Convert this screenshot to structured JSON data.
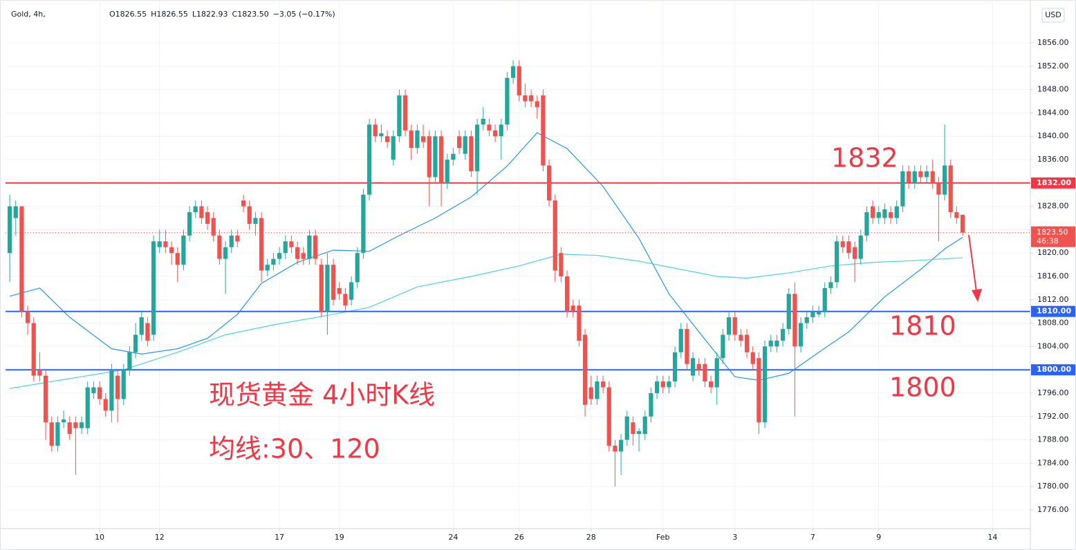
{
  "chart_data": {
    "type": "candlestick",
    "header": {
      "symbol": "Gold, 4h,",
      "ohlc": [
        "O1826.55",
        "H1826.55",
        "L1822.93",
        "C1823.50",
        "−3.05 (−0.17%)"
      ]
    },
    "currency": "USD",
    "colors": {
      "up": "#26a69a",
      "down": "#ef5350"
    },
    "xlim": [
      -0.7,
      170.3
    ],
    "xticks": [
      {
        "value": 15,
        "label": "10"
      },
      {
        "value": 25,
        "label": "12"
      },
      {
        "value": 45,
        "label": "17"
      },
      {
        "value": 55,
        "label": "19"
      },
      {
        "value": 74,
        "label": "24"
      },
      {
        "value": 85,
        "label": "26"
      },
      {
        "value": 97,
        "label": "28"
      },
      {
        "value": 109,
        "label": "Feb"
      },
      {
        "value": 121,
        "label": "3"
      },
      {
        "value": 134,
        "label": "7"
      },
      {
        "value": 145,
        "label": "9"
      },
      {
        "value": 164,
        "label": "14"
      }
    ],
    "ylim": [
      1772.92,
      1863.34
    ],
    "yticks": [
      {
        "value": 1776,
        "label": "1776.00"
      },
      {
        "value": 1780,
        "label": "1780.00"
      },
      {
        "value": 1784,
        "label": "1784.00"
      },
      {
        "value": 1788,
        "label": "1788.00"
      },
      {
        "value": 1792,
        "label": "1792.00"
      },
      {
        "value": 1796,
        "label": "1796.00"
      },
      {
        "value": 1800,
        "label": "1800.00"
      },
      {
        "value": 1804,
        "label": "1804.00"
      },
      {
        "value": 1808,
        "label": "1808.00"
      },
      {
        "value": 1812,
        "label": "1812.00"
      },
      {
        "value": 1816,
        "label": "1816.00"
      },
      {
        "value": 1820,
        "label": "1820.00"
      },
      {
        "value": 1824,
        "label": "1824.00"
      },
      {
        "value": 1828,
        "label": "1828.00"
      },
      {
        "value": 1832,
        "label": "1832.00"
      },
      {
        "value": 1836,
        "label": "1836.00"
      },
      {
        "value": 1840,
        "label": "1840.00"
      },
      {
        "value": 1844,
        "label": "1844.00"
      },
      {
        "value": 1848,
        "label": "1848.00"
      },
      {
        "value": 1852,
        "label": "1852.00"
      },
      {
        "value": 1856,
        "label": "1856.00"
      }
    ],
    "grid": true,
    "candles": [
      [
        1820,
        1830,
        1815,
        1828
      ],
      [
        1826,
        1829,
        1823,
        1828
      ],
      [
        1828,
        1828,
        1809,
        1810
      ],
      [
        1810,
        1811,
        1806,
        1808
      ],
      [
        1808,
        1809,
        1798,
        1799
      ],
      [
        1800,
        1803,
        1798,
        1799
      ],
      [
        1799,
        1800,
        1788,
        1791
      ],
      [
        1791,
        1792,
        1786,
        1787
      ],
      [
        1787,
        1792,
        1786,
        1791
      ],
      [
        1791,
        1793,
        1790,
        1791.5
      ],
      [
        1791,
        1792,
        1788,
        1789
      ],
      [
        1791,
        1792,
        1782,
        1790
      ],
      [
        1790,
        1792,
        1789,
        1791
      ],
      [
        1790,
        1798,
        1789,
        1797
      ],
      [
        1796,
        1798,
        1795,
        1797
      ],
      [
        1797,
        1798,
        1794,
        1795
      ],
      [
        1795,
        1796,
        1792,
        1793
      ],
      [
        1793,
        1801,
        1791,
        1800
      ],
      [
        1799,
        1800,
        1791,
        1795
      ],
      [
        1795,
        1801,
        1794,
        1800
      ],
      [
        1800,
        1804,
        1799,
        1803
      ],
      [
        1803,
        1808,
        1802,
        1806
      ],
      [
        1806,
        1810,
        1805,
        1809
      ],
      [
        1808,
        1809,
        1804,
        1805
      ],
      [
        1806,
        1823,
        1805,
        1822
      ],
      [
        1821,
        1824,
        1820,
        1822
      ],
      [
        1822,
        1824,
        1820,
        1821
      ],
      [
        1821,
        1822,
        1818,
        1820
      ],
      [
        1820,
        1821,
        1815,
        1818
      ],
      [
        1818,
        1824,
        1817,
        1823
      ],
      [
        1823,
        1828,
        1822,
        1827
      ],
      [
        1827,
        1829,
        1826,
        1828
      ],
      [
        1828,
        1829,
        1825,
        1826
      ],
      [
        1827,
        1828,
        1824,
        1825
      ],
      [
        1826,
        1827,
        1822,
        1823
      ],
      [
        1823,
        1824,
        1818,
        1819
      ],
      [
        1819,
        1822,
        1813,
        1821
      ],
      [
        1821,
        1824,
        1820,
        1823
      ],
      [
        1823,
        1824,
        1821,
        1822
      ],
      [
        1829,
        1830,
        1827,
        1828
      ],
      [
        1828,
        1829,
        1824,
        1825
      ],
      [
        1825,
        1827,
        1823,
        1826
      ],
      [
        1826,
        1827,
        1815,
        1817
      ],
      [
        1817,
        1819,
        1816,
        1818
      ],
      [
        1818,
        1820,
        1817,
        1819
      ],
      [
        1819,
        1821,
        1818,
        1820
      ],
      [
        1820,
        1823,
        1819,
        1822
      ],
      [
        1822,
        1823,
        1820,
        1821
      ],
      [
        1821,
        1822,
        1818,
        1819
      ],
      [
        1820,
        1821,
        1818,
        1819
      ],
      [
        1819,
        1824,
        1818,
        1823
      ],
      [
        1823,
        1824,
        1818,
        1819
      ],
      [
        1818,
        1819,
        1809,
        1810
      ],
      [
        1810,
        1820,
        1806,
        1818
      ],
      [
        1818,
        1819,
        1811,
        1812
      ],
      [
        1814,
        1815,
        1812,
        1813
      ],
      [
        1813,
        1814,
        1810,
        1811
      ],
      [
        1812,
        1816,
        1811,
        1815
      ],
      [
        1815,
        1821,
        1814,
        1820
      ],
      [
        1820,
        1831,
        1819,
        1830
      ],
      [
        1830,
        1843,
        1829,
        1842
      ],
      [
        1842,
        1843,
        1839,
        1840
      ],
      [
        1840,
        1842,
        1839,
        1840.5
      ],
      [
        1840,
        1841,
        1838,
        1839
      ],
      [
        1836,
        1841,
        1835,
        1840
      ],
      [
        1840,
        1848,
        1839,
        1847
      ],
      [
        1847,
        1848,
        1840,
        1841
      ],
      [
        1841,
        1842,
        1836,
        1838
      ],
      [
        1838,
        1842,
        1837,
        1841
      ],
      [
        1840,
        1842,
        1838,
        1839
      ],
      [
        1840,
        1841,
        1828,
        1833
      ],
      [
        1833,
        1841,
        1832,
        1840
      ],
      [
        1840,
        1841,
        1828,
        1832
      ],
      [
        1832,
        1837,
        1831,
        1836
      ],
      [
        1836,
        1838,
        1835,
        1837
      ],
      [
        1840,
        1841,
        1837,
        1838
      ],
      [
        1837,
        1841,
        1836,
        1840
      ],
      [
        1840,
        1841,
        1833,
        1834
      ],
      [
        1834,
        1843,
        1830,
        1842
      ],
      [
        1842,
        1845,
        1841,
        1843
      ],
      [
        1842,
        1843,
        1840,
        1841
      ],
      [
        1841,
        1842,
        1839,
        1840
      ],
      [
        1840,
        1843,
        1836,
        1842
      ],
      [
        1842,
        1851,
        1841,
        1850
      ],
      [
        1850,
        1853,
        1849,
        1852
      ],
      [
        1852,
        1853,
        1846,
        1847
      ],
      [
        1847,
        1849,
        1845,
        1846
      ],
      [
        1847,
        1848,
        1845,
        1846
      ],
      [
        1846,
        1847,
        1843,
        1845
      ],
      [
        1847,
        1848,
        1834,
        1835
      ],
      [
        1835,
        1836,
        1828,
        1829
      ],
      [
        1829,
        1830,
        1815,
        1817
      ],
      [
        1820,
        1821,
        1815,
        1816
      ],
      [
        1816,
        1817,
        1809,
        1810
      ],
      [
        1811,
        1812,
        1809,
        1810
      ],
      [
        1811,
        1812,
        1804,
        1805
      ],
      [
        1806,
        1807,
        1792,
        1794
      ],
      [
        1797,
        1799,
        1794,
        1795
      ],
      [
        1795,
        1799,
        1794,
        1798
      ],
      [
        1798,
        1799,
        1796,
        1797
      ],
      [
        1797,
        1798,
        1786,
        1787
      ],
      [
        1787,
        1788,
        1780,
        1786
      ],
      [
        1786,
        1789,
        1782,
        1788
      ],
      [
        1788,
        1793,
        1787,
        1792
      ],
      [
        1791,
        1792,
        1787,
        1789
      ],
      [
        1789,
        1790,
        1786,
        1789.5
      ],
      [
        1789,
        1793,
        1788,
        1792
      ],
      [
        1792,
        1797,
        1791,
        1796
      ],
      [
        1796,
        1799,
        1795,
        1798
      ],
      [
        1798,
        1799,
        1796,
        1797
      ],
      [
        1797,
        1799,
        1796,
        1798
      ],
      [
        1798,
        1804,
        1797,
        1803
      ],
      [
        1803,
        1808,
        1802,
        1807
      ],
      [
        1807,
        1808,
        1800,
        1801
      ],
      [
        1799,
        1803,
        1798,
        1802
      ],
      [
        1801,
        1802,
        1799,
        1800
      ],
      [
        1801,
        1802,
        1797,
        1798
      ],
      [
        1798,
        1799,
        1796,
        1797
      ],
      [
        1797,
        1803,
        1794,
        1802
      ],
      [
        1802,
        1807,
        1801,
        1806
      ],
      [
        1806,
        1810,
        1805,
        1809
      ],
      [
        1809,
        1810,
        1805,
        1806
      ],
      [
        1806,
        1807,
        1804,
        1805
      ],
      [
        1806,
        1807,
        1802,
        1803
      ],
      [
        1803,
        1804,
        1800,
        1801
      ],
      [
        1802,
        1803,
        1789,
        1791
      ],
      [
        1791,
        1805,
        1790,
        1804
      ],
      [
        1804,
        1806,
        1803,
        1805
      ],
      [
        1804,
        1806,
        1803,
        1805
      ],
      [
        1805,
        1808,
        1804,
        1807
      ],
      [
        1807,
        1814,
        1806,
        1813
      ],
      [
        1813,
        1815,
        1792,
        1804
      ],
      [
        1804,
        1809,
        1803,
        1808
      ],
      [
        1808,
        1810,
        1807,
        1809
      ],
      [
        1809,
        1811,
        1808,
        1810
      ],
      [
        1809.5,
        1811,
        1809,
        1810
      ],
      [
        1810,
        1815,
        1809,
        1814
      ],
      [
        1814,
        1816,
        1813,
        1815
      ],
      [
        1815,
        1823,
        1814,
        1822
      ],
      [
        1822,
        1823,
        1820,
        1821
      ],
      [
        1822,
        1823,
        1819,
        1820
      ],
      [
        1821,
        1822,
        1815,
        1819
      ],
      [
        1819,
        1824,
        1818,
        1823
      ],
      [
        1823,
        1828,
        1822,
        1827
      ],
      [
        1828,
        1829,
        1825,
        1826
      ],
      [
        1826,
        1828,
        1825,
        1827
      ],
      [
        1826,
        1828.5,
        1825,
        1827.5
      ],
      [
        1827,
        1828,
        1825,
        1826
      ],
      [
        1826,
        1829,
        1825,
        1828
      ],
      [
        1828,
        1835,
        1827,
        1834
      ],
      [
        1834,
        1835,
        1831,
        1832
      ],
      [
        1832,
        1835,
        1831,
        1834
      ],
      [
        1834,
        1835,
        1832,
        1833
      ],
      [
        1833,
        1835,
        1832,
        1834
      ],
      [
        1834,
        1836,
        1831,
        1832
      ],
      [
        1832,
        1833,
        1822,
        1830
      ],
      [
        1830,
        1842,
        1829,
        1835
      ],
      [
        1835,
        1836,
        1826,
        1827
      ],
      [
        1827,
        1828,
        1825,
        1826
      ],
      [
        1826.55,
        1826.55,
        1822.93,
        1823.5
      ]
    ],
    "moving_averages": [
      {
        "color": "#2196f3",
        "x": [
          0,
          5,
          10,
          17,
          22,
          28,
          33,
          38,
          42,
          48,
          54,
          60,
          65,
          71,
          77,
          83,
          88,
          93,
          99,
          105,
          110,
          115,
          121,
          125,
          130,
          135,
          140,
          146,
          152,
          156,
          159
        ],
        "values": [
          1812.6,
          1814,
          1809,
          1803.6,
          1802.7,
          1803.6,
          1805.4,
          1809.5,
          1814.8,
          1818.4,
          1820.5,
          1820.3,
          1823,
          1826,
          1829.6,
          1834.9,
          1840.6,
          1837.9,
          1831.4,
          1822.5,
          1813,
          1806.5,
          1798.8,
          1798.2,
          1799.4,
          1803,
          1806.5,
          1812.5,
          1817.2,
          1820.7,
          1822.7
        ]
      },
      {
        "color": "#4dd0e1",
        "x": [
          0,
          10,
          19,
          28,
          36,
          44,
          54,
          60,
          68,
          77,
          85,
          92,
          98,
          105,
          112,
          118,
          123,
          130,
          137,
          144,
          151,
          159
        ],
        "values": [
          1796.8,
          1798.5,
          1800,
          1803,
          1806,
          1807.7,
          1809.5,
          1810.7,
          1814.2,
          1816,
          1817.8,
          1819.8,
          1819.6,
          1818.6,
          1817.2,
          1816,
          1815.7,
          1816.6,
          1817.8,
          1818.4,
          1818.7,
          1819.2
        ]
      }
    ],
    "levels": [
      {
        "value": 1832,
        "label": "1832.00",
        "color": "#f23645"
      },
      {
        "value": 1810,
        "label": "1810.00",
        "color": "#2962ff"
      },
      {
        "value": 1800,
        "label": "1800.00",
        "color": "#2962ff"
      }
    ],
    "last_price": {
      "value": 1823.5,
      "label": "1823.50",
      "countdown": "46:38",
      "color": "#ef5350"
    },
    "annotations": [
      "1832",
      "1810",
      "1800",
      "现货黄金 4小时K线",
      "均线:30、120"
    ]
  }
}
